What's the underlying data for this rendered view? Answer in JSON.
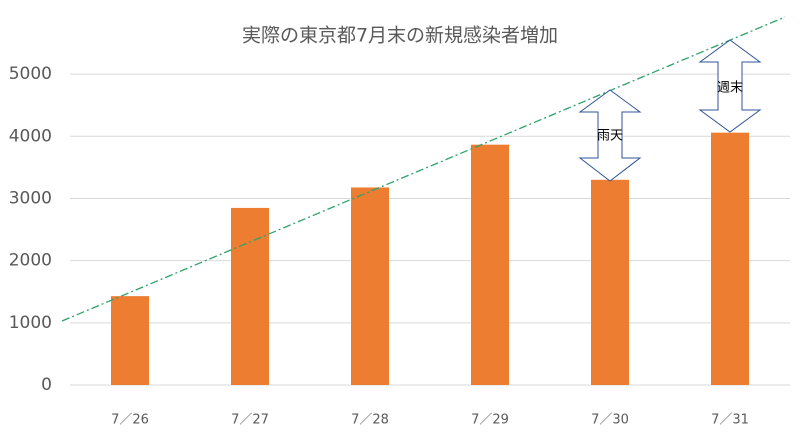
{
  "chart_data": {
    "type": "bar",
    "title": "実際の東京都7月末の新規感染者増加",
    "categories": [
      "7／26",
      "7／27",
      "7／28",
      "7／29",
      "7／30",
      "7／31"
    ],
    "values": [
      1429,
      2848,
      3177,
      3865,
      3300,
      4058
    ],
    "color": "#ed7d31",
    "ylim": [
      0,
      5500
    ],
    "yticks": [
      0,
      1000,
      2000,
      3000,
      4000,
      5000
    ],
    "grid": true,
    "annotations": [
      "雨天",
      "週末"
    ]
  }
}
